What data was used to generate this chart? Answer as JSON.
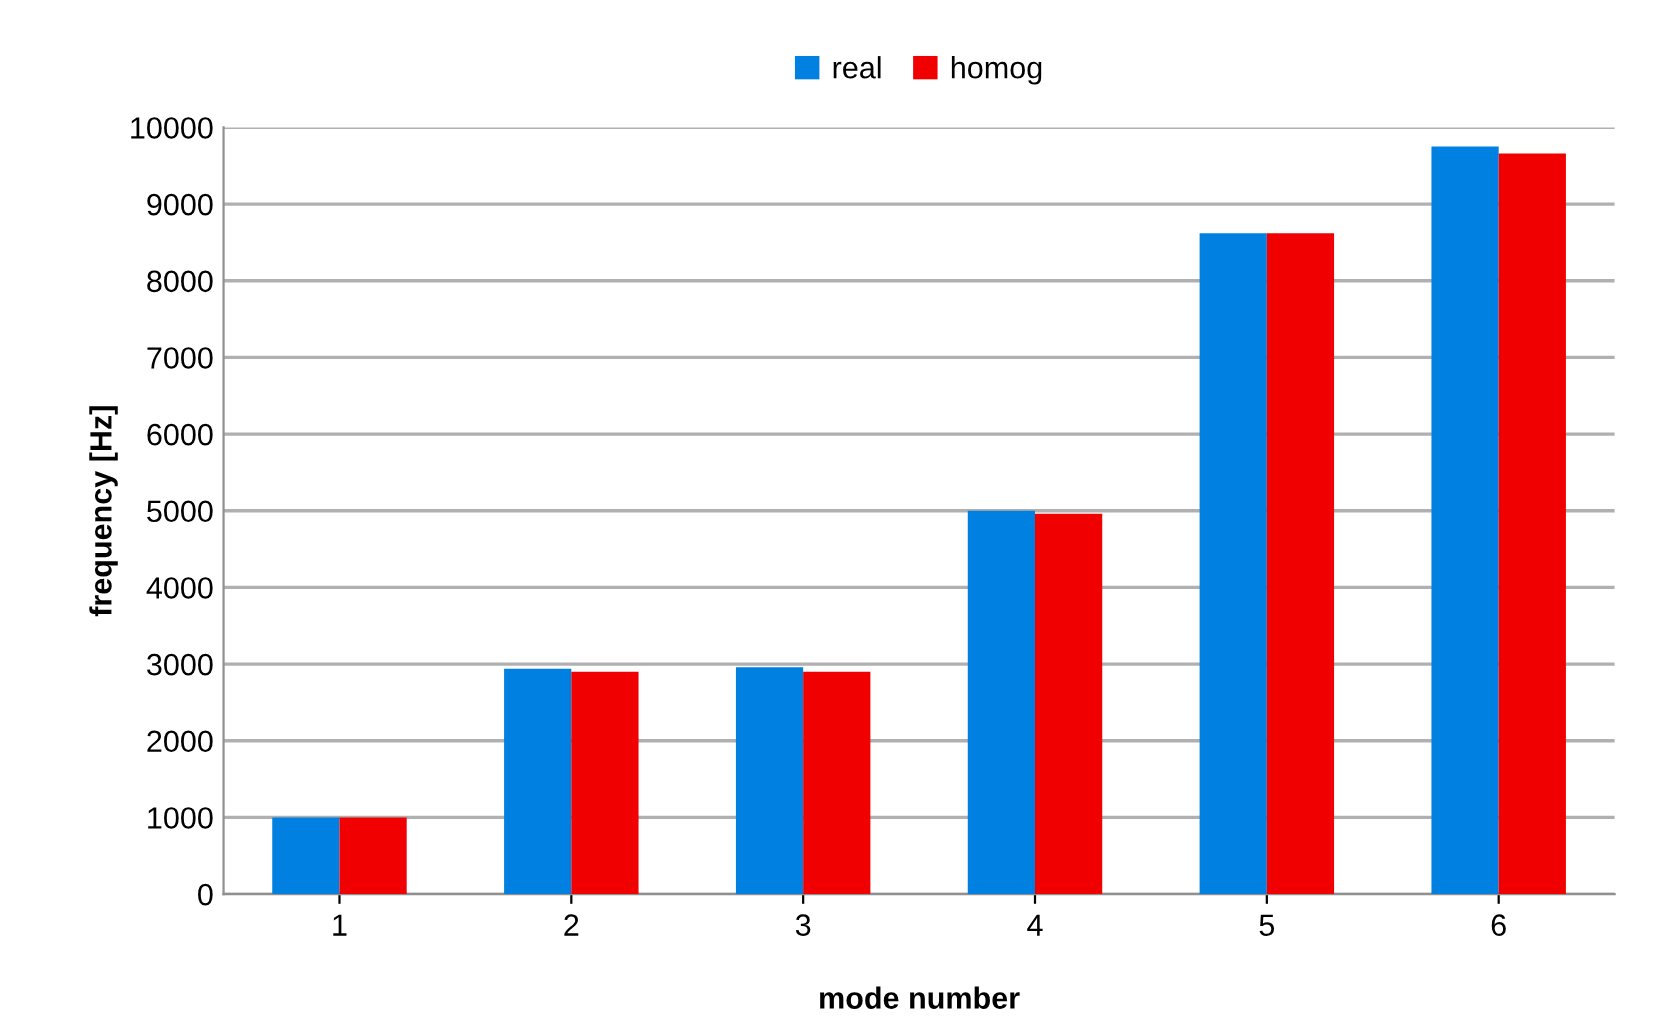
{
  "chart_data": {
    "type": "bar",
    "xlabel": "mode number",
    "ylabel": "frequency [Hz]",
    "categories": [
      "1",
      "2",
      "3",
      "4",
      "5",
      "6"
    ],
    "series": [
      {
        "name": "real",
        "color": "#0080e0",
        "values": [
          1000,
          2940,
          2960,
          5000,
          8620,
          9750
        ]
      },
      {
        "name": "homog",
        "color": "#f00000",
        "values": [
          1000,
          2900,
          2900,
          4960,
          8620,
          9660
        ]
      }
    ],
    "ylim": [
      0,
      10000
    ],
    "yticks": [
      0,
      1000,
      2000,
      3000,
      4000,
      5000,
      6000,
      7000,
      8000,
      9000,
      10000
    ],
    "grid": "y",
    "legend": "top"
  }
}
